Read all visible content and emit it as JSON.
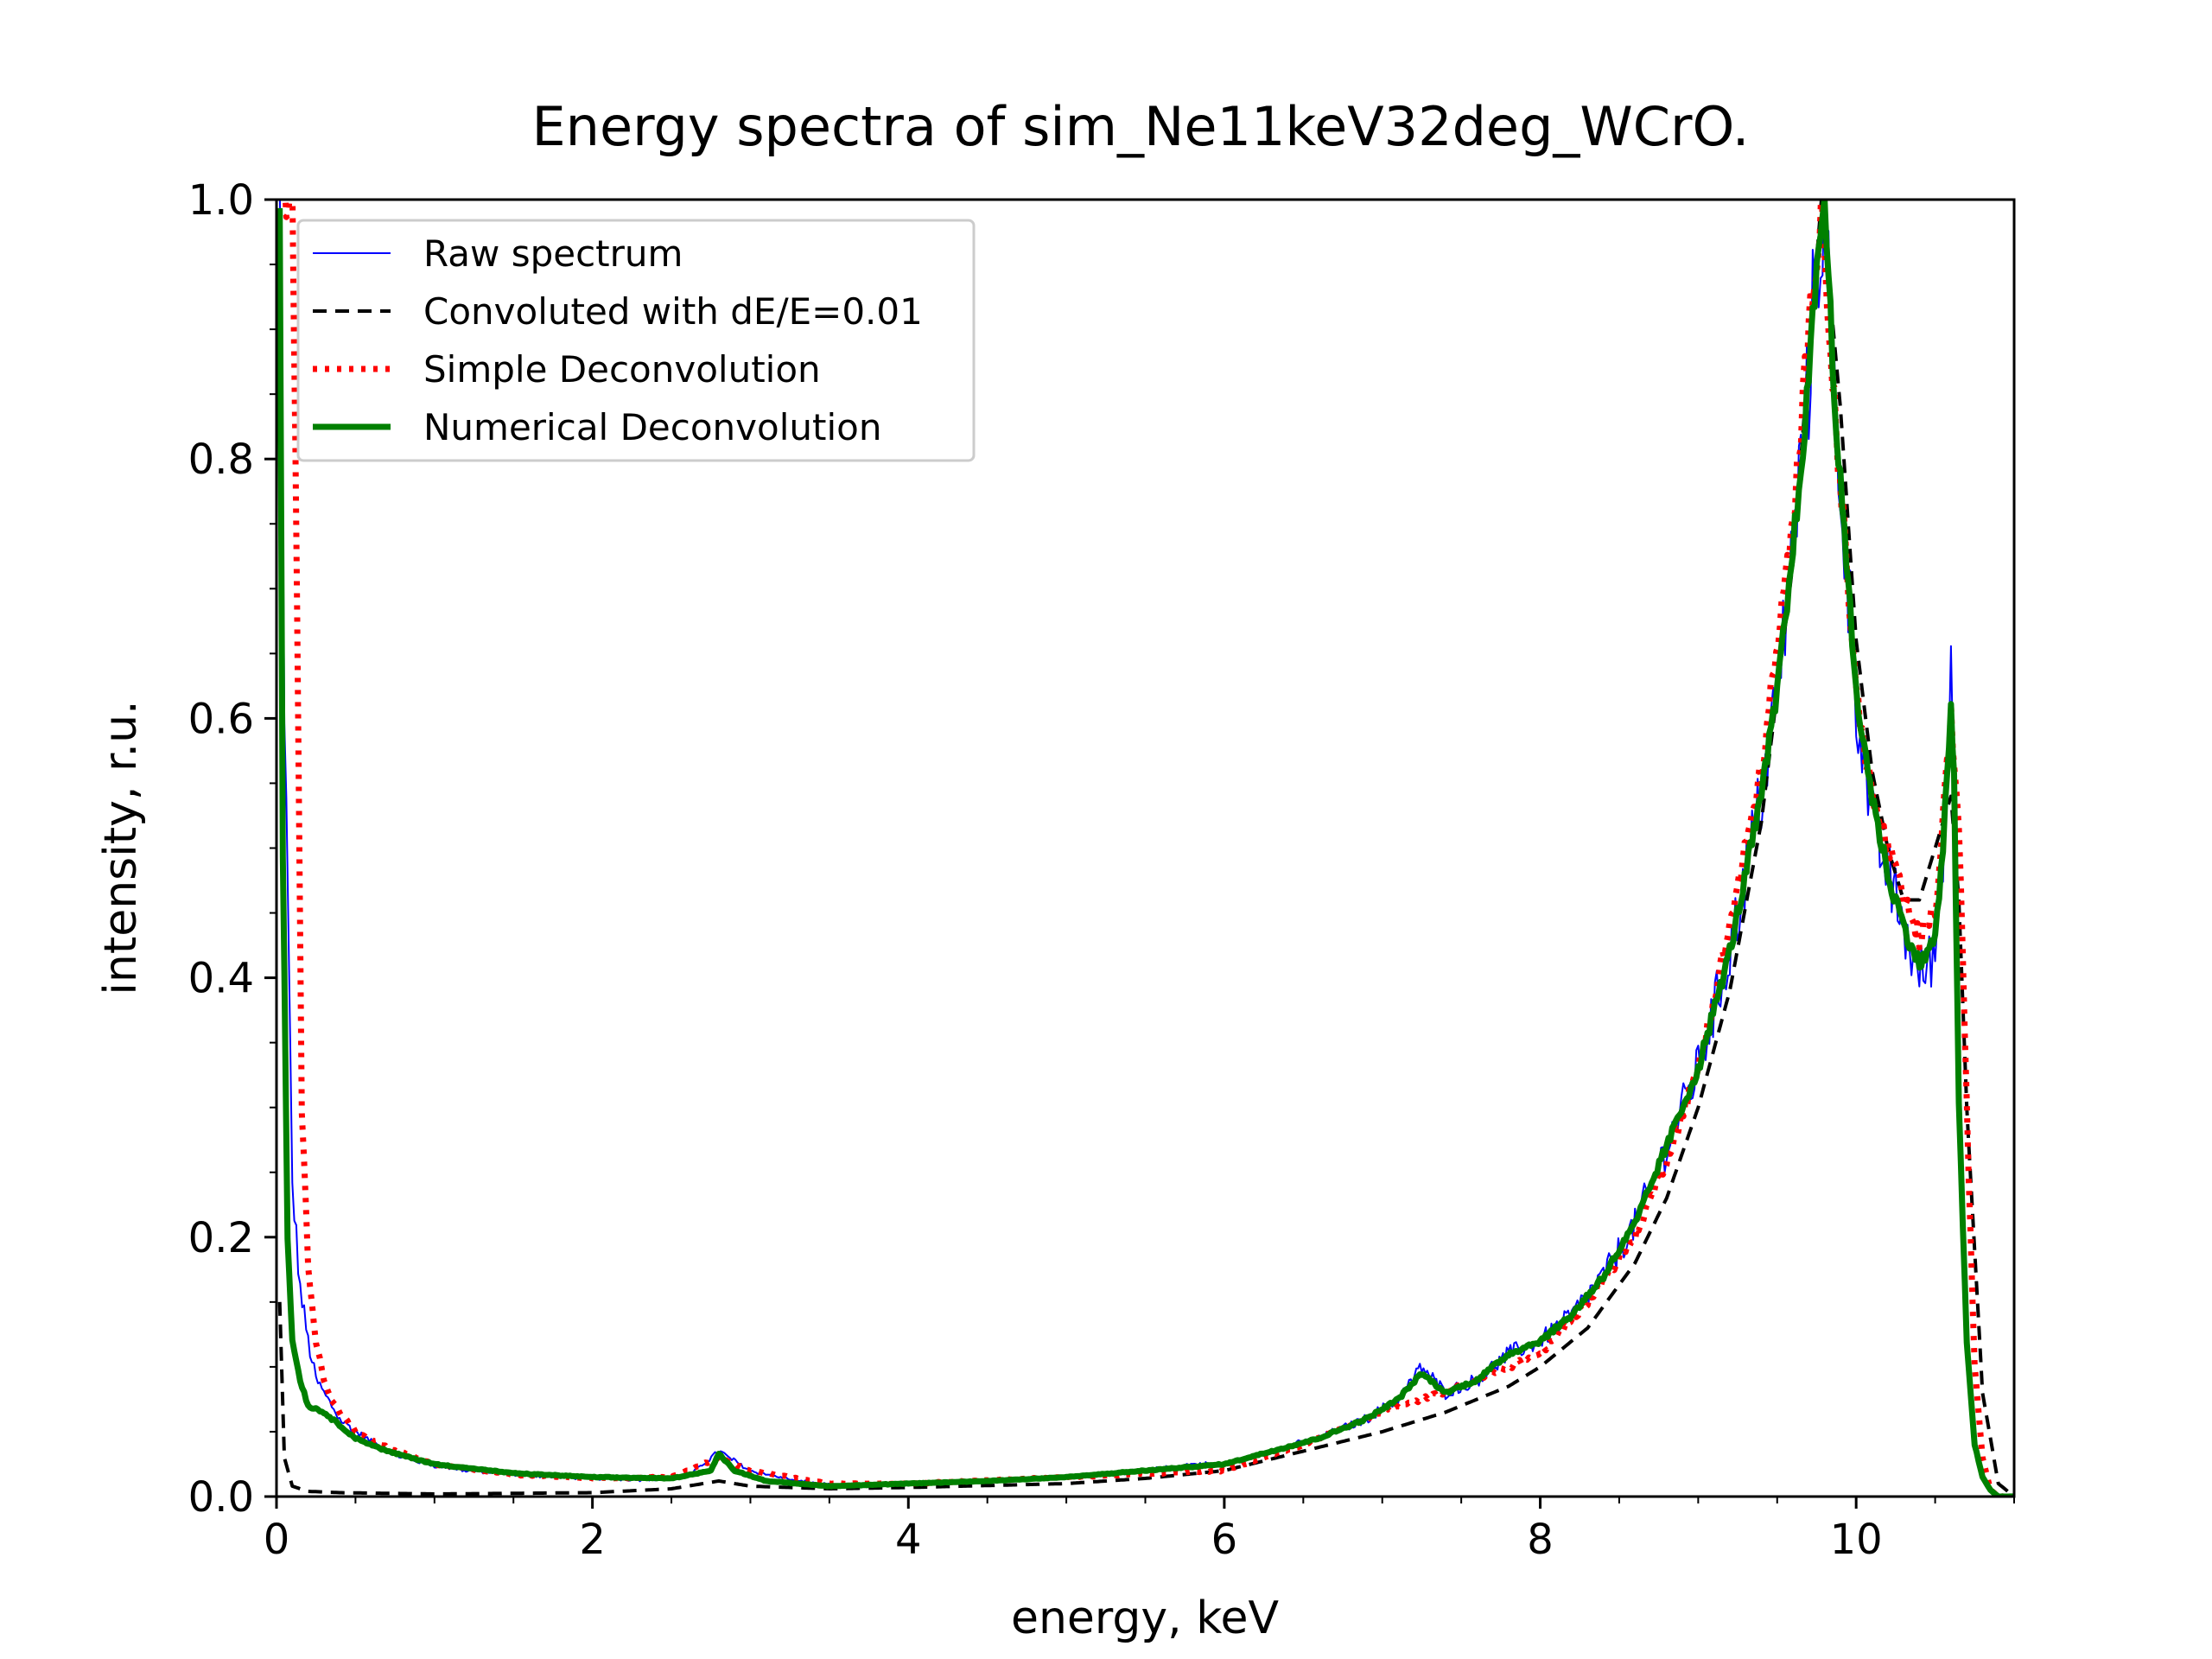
{
  "chart_data": {
    "type": "line",
    "title": "Energy spectra of sim_Ne11keV32deg_WCrO.",
    "xlabel": "energy, keV",
    "ylabel": "intensity, r.u.",
    "xlim": [
      0,
      11
    ],
    "ylim": [
      0,
      1.0
    ],
    "xticks": [
      0,
      2,
      4,
      6,
      8,
      10
    ],
    "xtick_labels": [
      "0",
      "2",
      "4",
      "6",
      "8",
      "10"
    ],
    "yticks": [
      0.0,
      0.2,
      0.4,
      0.6,
      0.8,
      1.0
    ],
    "ytick_labels": [
      "0.0",
      "0.2",
      "0.4",
      "0.6",
      "0.8",
      "1.0"
    ],
    "grid": false,
    "legend_position": "top-left",
    "series": [
      {
        "name": "Raw spectrum",
        "color": "#0000ff",
        "style": "solid-thin",
        "x": [
          0.02,
          0.05,
          0.1,
          0.15,
          0.2,
          0.25,
          0.3,
          0.35,
          0.4,
          0.5,
          0.6,
          0.7,
          0.8,
          1.0,
          1.2,
          1.5,
          1.8,
          2.0,
          2.3,
          2.6,
          2.8,
          3.0,
          3.3,
          3.6,
          4.0,
          4.5,
          5.0,
          5.5,
          5.8,
          6.0,
          6.3,
          6.6,
          6.9,
          7.1,
          7.25,
          7.4,
          7.6,
          7.8,
          8.0,
          8.2,
          8.4,
          8.6,
          8.8,
          9.0,
          9.2,
          9.4,
          9.5,
          9.6,
          9.7,
          9.75,
          9.8,
          9.85,
          9.9,
          10.0,
          10.1,
          10.2,
          10.3,
          10.4,
          10.5,
          10.55,
          10.6,
          10.62,
          10.65,
          10.7,
          10.75,
          10.8,
          10.85,
          10.9,
          11.0
        ],
        "y": [
          1.0,
          0.62,
          0.24,
          0.16,
          0.12,
          0.09,
          0.08,
          0.07,
          0.06,
          0.05,
          0.042,
          0.036,
          0.03,
          0.024,
          0.02,
          0.017,
          0.015,
          0.014,
          0.013,
          0.015,
          0.035,
          0.02,
          0.012,
          0.008,
          0.01,
          0.012,
          0.015,
          0.02,
          0.025,
          0.025,
          0.035,
          0.045,
          0.06,
          0.075,
          0.1,
          0.08,
          0.09,
          0.11,
          0.12,
          0.14,
          0.17,
          0.21,
          0.27,
          0.33,
          0.42,
          0.54,
          0.62,
          0.73,
          0.86,
          0.96,
          0.99,
          0.88,
          0.78,
          0.62,
          0.52,
          0.48,
          0.44,
          0.4,
          0.42,
          0.5,
          0.63,
          0.55,
          0.3,
          0.12,
          0.04,
          0.015,
          0.005,
          0.0,
          0.0
        ]
      },
      {
        "name": "Convoluted with dE/E=0.01",
        "color": "#000000",
        "style": "dashed",
        "x": [
          0.02,
          0.05,
          0.1,
          0.2,
          0.4,
          1.0,
          2.0,
          2.5,
          2.8,
          3.0,
          3.5,
          4.0,
          5.0,
          5.5,
          6.0,
          6.5,
          7.0,
          7.4,
          7.8,
          8.0,
          8.3,
          8.6,
          8.8,
          9.0,
          9.2,
          9.4,
          9.6,
          9.7,
          9.78,
          9.9,
          10.0,
          10.1,
          10.2,
          10.3,
          10.4,
          10.5,
          10.6,
          10.65,
          10.7,
          10.8,
          10.9,
          11.0
        ],
        "y": [
          0.15,
          0.03,
          0.008,
          0.004,
          0.003,
          0.002,
          0.003,
          0.006,
          0.012,
          0.008,
          0.006,
          0.007,
          0.01,
          0.014,
          0.02,
          0.035,
          0.05,
          0.065,
          0.085,
          0.1,
          0.13,
          0.18,
          0.23,
          0.3,
          0.39,
          0.52,
          0.72,
          0.88,
          1.0,
          0.84,
          0.66,
          0.56,
          0.5,
          0.46,
          0.46,
          0.5,
          0.54,
          0.46,
          0.3,
          0.08,
          0.01,
          0.0
        ]
      },
      {
        "name": "Simple Deconvolution",
        "color": "#ff0000",
        "style": "dotted",
        "x": [
          0.05,
          0.1,
          0.13,
          0.16,
          0.2,
          0.25,
          0.3,
          0.35,
          0.4,
          0.5,
          0.7,
          1.0,
          1.5,
          2.0,
          2.5,
          2.8,
          3.0,
          3.5,
          4.0,
          5.0,
          6.0,
          6.5,
          7.0,
          7.5,
          8.0,
          8.3,
          8.6,
          8.8,
          9.0,
          9.2,
          9.4,
          9.6,
          9.7,
          9.78,
          9.85,
          10.0,
          10.1,
          10.2,
          10.3,
          10.4,
          10.5,
          10.6,
          10.65,
          10.7,
          10.75,
          10.8,
          10.85,
          10.9,
          11.0
        ],
        "y": [
          1.0,
          1.0,
          0.7,
          0.3,
          0.18,
          0.12,
          0.09,
          0.075,
          0.065,
          0.05,
          0.038,
          0.025,
          0.017,
          0.014,
          0.015,
          0.03,
          0.02,
          0.01,
          0.01,
          0.015,
          0.02,
          0.04,
          0.065,
          0.085,
          0.11,
          0.15,
          0.2,
          0.26,
          0.33,
          0.44,
          0.56,
          0.75,
          0.9,
          1.0,
          0.86,
          0.62,
          0.54,
          0.5,
          0.46,
          0.43,
          0.45,
          0.6,
          0.52,
          0.3,
          0.1,
          0.03,
          0.005,
          0.0,
          0.0
        ]
      },
      {
        "name": "Numerical Deconvolution",
        "color": "#008000",
        "style": "solid-thick",
        "x": [
          0.02,
          0.04,
          0.07,
          0.1,
          0.15,
          0.2,
          0.3,
          0.4,
          0.5,
          0.7,
          1.0,
          1.5,
          2.0,
          2.5,
          2.75,
          2.8,
          2.9,
          3.1,
          3.5,
          4.0,
          4.5,
          5.0,
          5.5,
          6.0,
          6.3,
          6.6,
          6.9,
          7.1,
          7.25,
          7.4,
          7.6,
          7.8,
          8.0,
          8.2,
          8.4,
          8.6,
          8.8,
          9.0,
          9.2,
          9.4,
          9.5,
          9.6,
          9.7,
          9.75,
          9.8,
          9.85,
          9.9,
          10.0,
          10.1,
          10.2,
          10.3,
          10.4,
          10.5,
          10.55,
          10.6,
          10.62,
          10.65,
          10.7,
          10.75,
          10.8,
          10.85,
          10.9,
          11.0
        ],
        "y": [
          1.0,
          0.5,
          0.2,
          0.12,
          0.09,
          0.07,
          0.065,
          0.055,
          0.045,
          0.035,
          0.025,
          0.018,
          0.015,
          0.014,
          0.02,
          0.033,
          0.02,
          0.012,
          0.008,
          0.01,
          0.012,
          0.015,
          0.02,
          0.025,
          0.035,
          0.045,
          0.06,
          0.075,
          0.095,
          0.08,
          0.09,
          0.11,
          0.12,
          0.14,
          0.17,
          0.21,
          0.27,
          0.33,
          0.42,
          0.54,
          0.62,
          0.73,
          0.86,
          0.95,
          1.0,
          0.88,
          0.78,
          0.62,
          0.54,
          0.48,
          0.44,
          0.41,
          0.43,
          0.5,
          0.61,
          0.55,
          0.3,
          0.12,
          0.04,
          0.015,
          0.005,
          0.0,
          0.0
        ]
      }
    ]
  }
}
